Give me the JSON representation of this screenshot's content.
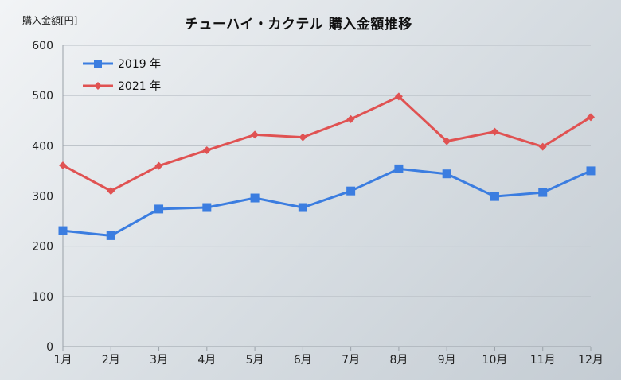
{
  "chart_data": {
    "type": "line",
    "title": "チューハイ・カクテル 購入金額推移",
    "ylabel": "購入金額[円]",
    "xlabel": "",
    "categories": [
      "1月",
      "2月",
      "3月",
      "4月",
      "5月",
      "6月",
      "7月",
      "8月",
      "9月",
      "10月",
      "11月",
      "12月"
    ],
    "ylim": [
      0,
      600
    ],
    "yticks": [
      0,
      100,
      200,
      300,
      400,
      500,
      600
    ],
    "grid": true,
    "legend_position": "top-left",
    "series": [
      {
        "name": "2019 年",
        "color": "#3b7de0",
        "marker": "square",
        "values": [
          231,
          221,
          274,
          277,
          296,
          277,
          310,
          354,
          344,
          299,
          307,
          350
        ]
      },
      {
        "name": "2021 年",
        "color": "#e05252",
        "marker": "diamond",
        "values": [
          361,
          310,
          360,
          391,
          422,
          417,
          453,
          498,
          409,
          428,
          398,
          457
        ]
      }
    ]
  }
}
